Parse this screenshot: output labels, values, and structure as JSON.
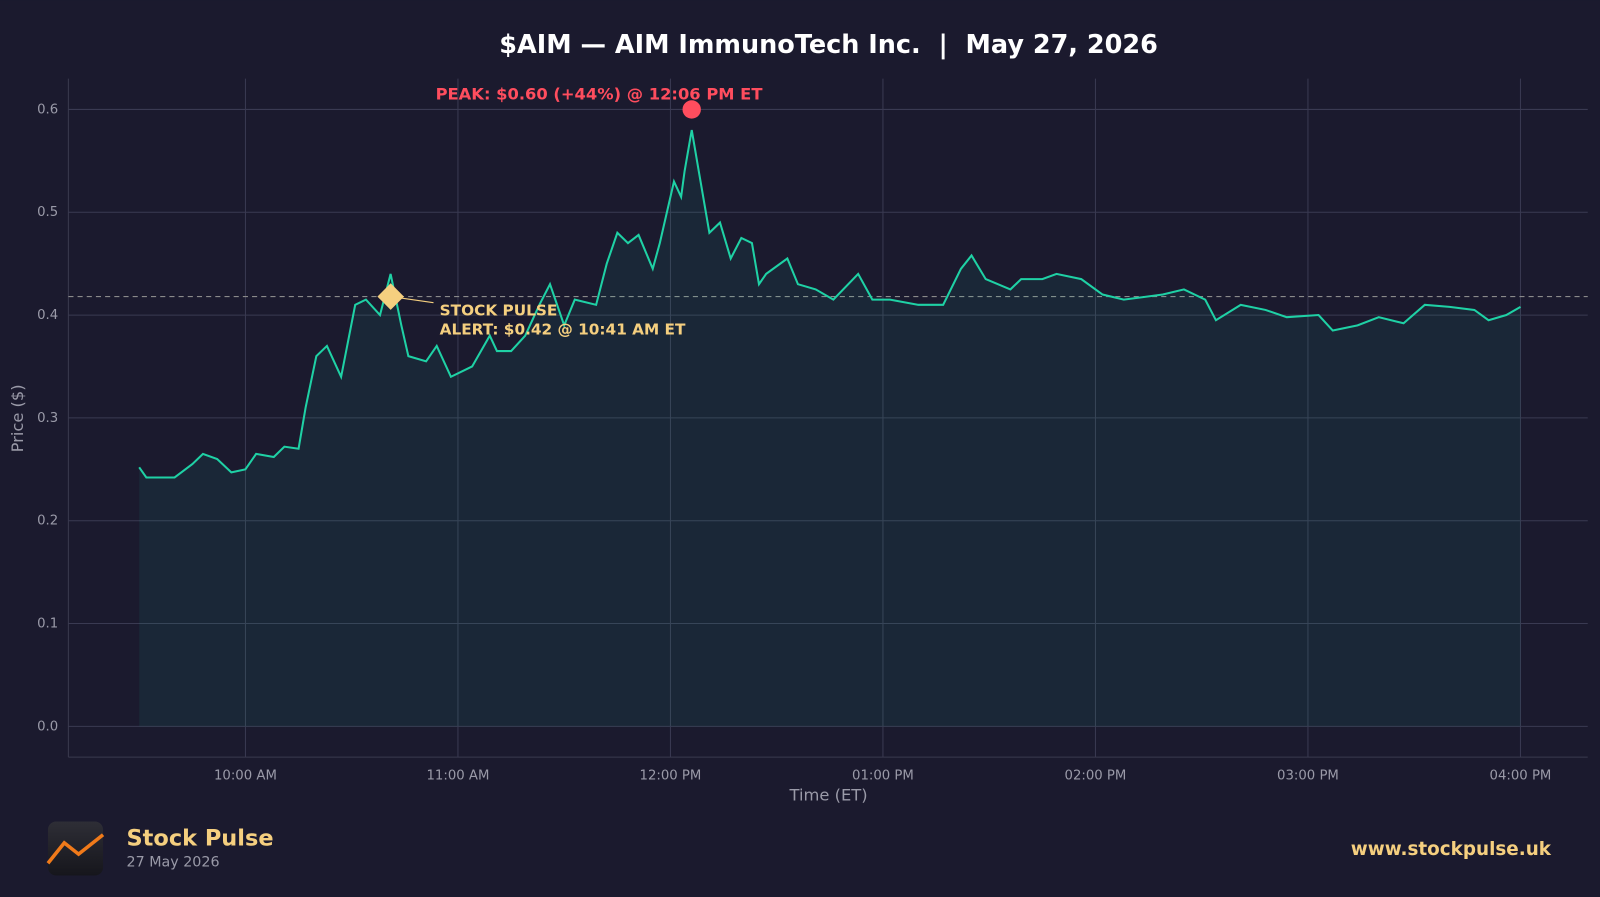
{
  "chart_data": {
    "type": "line",
    "title": "$AIM — AIM ImmunoTech Inc.  |  May 27, 2026",
    "xlabel": "Time (ET)",
    "ylabel": "Price ($)",
    "x": [
      "09:30",
      "09:32",
      "09:40",
      "09:45",
      "09:48",
      "09:52",
      "09:56",
      "10:00",
      "10:03",
      "10:08",
      "10:11",
      "10:15",
      "10:17",
      "10:20",
      "10:23",
      "10:27",
      "10:31",
      "10:34",
      "10:38",
      "10:41",
      "10:44",
      "10:46",
      "10:51",
      "10:54",
      "10:58",
      "11:04",
      "11:09",
      "11:11",
      "11:15",
      "11:19",
      "11:23",
      "11:26",
      "11:30",
      "11:33",
      "11:39",
      "11:42",
      "11:45",
      "11:48",
      "11:51",
      "11:55",
      "11:57",
      "12:01",
      "12:03",
      "12:04",
      "12:06",
      "12:08",
      "12:11",
      "12:14",
      "12:17",
      "12:20",
      "12:23",
      "12:25",
      "12:27",
      "12:33",
      "12:36",
      "12:41",
      "12:46",
      "12:53",
      "12:57",
      "13:02",
      "13:10",
      "13:17",
      "13:22",
      "13:25",
      "13:29",
      "13:36",
      "13:39",
      "13:45",
      "13:49",
      "13:56",
      "14:02",
      "14:08",
      "14:19",
      "14:25",
      "14:31",
      "14:34",
      "14:41",
      "14:48",
      "14:54",
      "15:03",
      "15:07",
      "15:14",
      "15:20",
      "15:27",
      "15:33",
      "15:40",
      "15:47",
      "15:51",
      "15:56",
      "16:00"
    ],
    "series": [
      {
        "name": "AIM",
        "color": "#1fd1a5",
        "values": [
          0.252,
          0.242,
          0.242,
          0.255,
          0.265,
          0.26,
          0.247,
          0.25,
          0.265,
          0.262,
          0.272,
          0.27,
          0.31,
          0.36,
          0.37,
          0.34,
          0.41,
          0.415,
          0.4,
          0.44,
          0.39,
          0.36,
          0.355,
          0.37,
          0.34,
          0.35,
          0.38,
          0.365,
          0.365,
          0.38,
          0.41,
          0.43,
          0.39,
          0.415,
          0.41,
          0.45,
          0.48,
          0.47,
          0.478,
          0.445,
          0.47,
          0.53,
          0.515,
          0.54,
          0.58,
          0.54,
          0.48,
          0.49,
          0.455,
          0.475,
          0.47,
          0.43,
          0.44,
          0.455,
          0.43,
          0.425,
          0.415,
          0.44,
          0.415,
          0.415,
          0.41,
          0.41,
          0.445,
          0.458,
          0.435,
          0.425,
          0.435,
          0.435,
          0.44,
          0.435,
          0.42,
          0.415,
          0.42,
          0.425,
          0.415,
          0.395,
          0.41,
          0.405,
          0.398,
          0.4,
          0.385,
          0.39,
          0.398,
          0.392,
          0.41,
          0.408,
          0.405,
          0.395,
          0.4,
          0.408
        ]
      }
    ],
    "xlim": [
      "09:10",
      "16:19"
    ],
    "xticks": [
      {
        "value": "10:00",
        "label": "10:00 AM"
      },
      {
        "value": "11:00",
        "label": "11:00 AM"
      },
      {
        "value": "12:00",
        "label": "12:00 PM"
      },
      {
        "value": "13:00",
        "label": "01:00 PM"
      },
      {
        "value": "14:00",
        "label": "02:00 PM"
      },
      {
        "value": "15:00",
        "label": "03:00 PM"
      },
      {
        "value": "16:00",
        "label": "04:00 PM"
      }
    ],
    "ylim": [
      -0.03,
      0.63
    ],
    "yticks": [
      {
        "value": 0,
        "label": "0.0"
      },
      0.1,
      0.2,
      0.3,
      0.4,
      0.5,
      0.6
    ],
    "grid": true,
    "hline": 0.418,
    "annotations": [
      {
        "text": "PEAK: $0.60 (+44%) @ 12:06 PM ET",
        "x": "12:06",
        "y": 0.6,
        "color": "#ff4d5e",
        "marker": "circle"
      },
      {
        "lines": [
          "STOCK PULSE",
          "ALERT: $0.42 @ 10:41 AM ET"
        ],
        "x": "10:41",
        "y": 0.418,
        "color": "#f5cf7f",
        "marker": "diamond"
      }
    ]
  },
  "footer": {
    "brand": "Stock Pulse",
    "date": "27 May 2026",
    "url": "www.stockpulse.uk"
  }
}
